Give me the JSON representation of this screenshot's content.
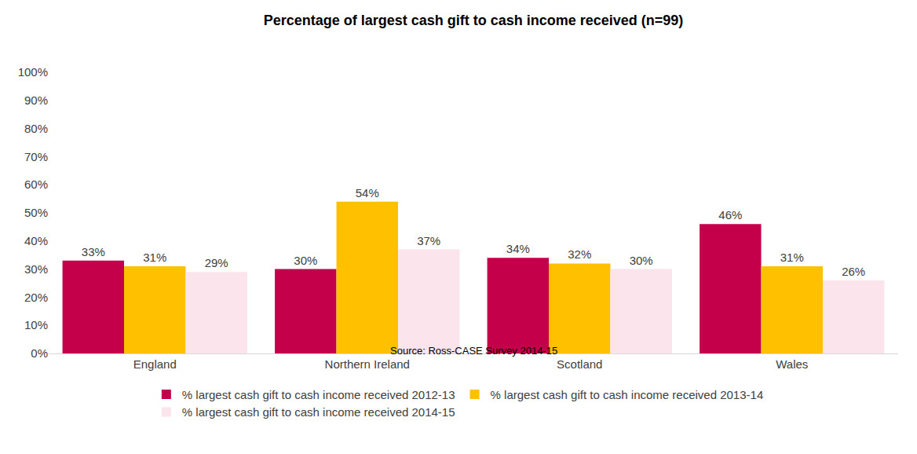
{
  "chart_data": {
    "type": "bar",
    "title": "Percentage of largest cash gift to cash income received (n=99)",
    "subtitle": "Source: Ross-CASE Survey 2014-15",
    "categories": [
      "England",
      "Northern Ireland",
      "Scotland",
      "Wales"
    ],
    "series": [
      {
        "name": "% largest cash gift to cash income received 2012-13",
        "color": "#C5004A",
        "values": [
          33,
          30,
          34,
          46
        ],
        "value_labels": [
          "33%",
          "30%",
          "34%",
          "46%"
        ]
      },
      {
        "name": "% largest cash gift to cash income received 2013-14",
        "color": "#FFC000",
        "values": [
          31,
          54,
          32,
          31
        ],
        "value_labels": [
          "31%",
          "54%",
          "32%",
          "31%"
        ]
      },
      {
        "name": "% largest cash gift to cash income received 2014-15",
        "color": "#FCE4EC",
        "values": [
          29,
          37,
          30,
          26
        ],
        "value_labels": [
          "29%",
          "37%",
          "30%",
          "26%"
        ]
      }
    ],
    "ylim": [
      0,
      100
    ],
    "yticks": [
      {
        "value": 0,
        "label": "0%"
      },
      {
        "value": 10,
        "label": "10%"
      },
      {
        "value": 20,
        "label": "20%"
      },
      {
        "value": 30,
        "label": "30%"
      },
      {
        "value": 40,
        "label": "40%"
      },
      {
        "value": 50,
        "label": "50%"
      },
      {
        "value": 60,
        "label": "60%"
      },
      {
        "value": 70,
        "label": "70%"
      },
      {
        "value": 80,
        "label": "80%"
      },
      {
        "value": 90,
        "label": "90%"
      },
      {
        "value": 100,
        "label": "100%"
      }
    ],
    "grid": false,
    "legend": "bottom",
    "data_labels": true
  }
}
